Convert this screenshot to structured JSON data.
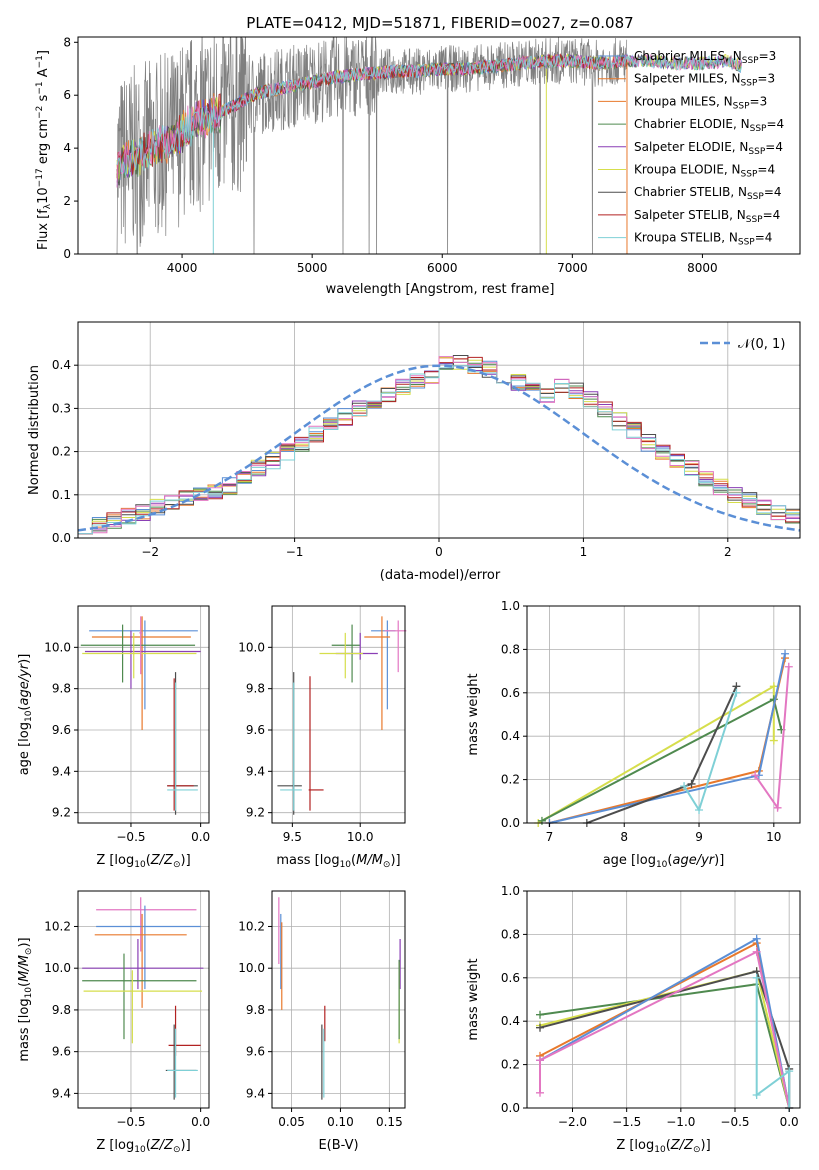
{
  "figure": {
    "title": "PLATE=0412, MJD=51871, FIBERID=0027, z=0.087"
  },
  "colors": {
    "data_gray": "#7f7f7f",
    "blue": "#5b8fd6",
    "orange": "#e8792c",
    "green": "#4f8a4f",
    "purple": "#8a3fb5",
    "yellow": "#d6de4c",
    "dark": "#4d4d4d",
    "red": "#b22222",
    "pink": "#e377c2",
    "cyan": "#7fd0d6"
  },
  "chart_data": [
    {
      "id": "spectrum",
      "type": "line",
      "title": "PLATE=0412, MJD=51871, FIBERID=0027, z=0.087",
      "xlabel": "wavelength [Angstrom, rest frame]",
      "ylabel_main": "Flux [f",
      "ylabel_sub1": "λ",
      "ylabel_mid": "10",
      "ylabel_sup1": "−17",
      "ylabel_mid2": " erg cm",
      "ylabel_sup2": "−2",
      "ylabel_mid3": " s",
      "ylabel_sup3": "−1",
      "ylabel_mid4": " A",
      "ylabel_sup4": "−1",
      "ylabel_end": "]",
      "xlim": [
        3200,
        8750
      ],
      "ylim": [
        0,
        8.2
      ],
      "xticks": [
        "4000",
        "5000",
        "6000",
        "7000",
        "8000"
      ],
      "yticks": [
        "0",
        "2",
        "4",
        "6",
        "8"
      ],
      "grid": false,
      "legend_position": "top-right",
      "legend": [
        {
          "label": "Chabrier MILES, N",
          "sub": "SSP",
          "tail": "=3"
        },
        {
          "label": "Salpeter MILES, N",
          "sub": "SSP",
          "tail": "=3"
        },
        {
          "label": "Kroupa MILES, N",
          "sub": "SSP",
          "tail": "=3"
        },
        {
          "label": "Chabrier ELODIE, N",
          "sub": "SSP",
          "tail": "=4"
        },
        {
          "label": "Salpeter ELODIE, N",
          "sub": "SSP",
          "tail": "=4"
        },
        {
          "label": "Kroupa ELODIE, N",
          "sub": "SSP",
          "tail": "=4"
        },
        {
          "label": "Chabrier STELIB, N",
          "sub": "SSP",
          "tail": "=4"
        },
        {
          "label": "Salpeter STELIB, N",
          "sub": "SSP",
          "tail": "=4"
        },
        {
          "label": "Kroupa STELIB, N",
          "sub": "SSP",
          "tail": "=4"
        }
      ],
      "continuum": {
        "x": [
          3500,
          3600,
          3700,
          3800,
          3900,
          4000,
          4100,
          4200,
          4300,
          4400,
          4500,
          4600,
          4800,
          5000,
          5200,
          5400,
          5600,
          5800,
          6000,
          6200,
          6400,
          6600,
          6800,
          7000,
          7200,
          7400,
          7600,
          7800,
          8000,
          8200,
          8300
        ],
        "y": [
          3.3,
          3.6,
          3.8,
          4.0,
          4.2,
          4.6,
          5.0,
          5.2,
          5.4,
          5.6,
          5.9,
          6.1,
          6.3,
          6.5,
          6.7,
          6.8,
          6.9,
          6.9,
          7.0,
          7.0,
          7.1,
          7.2,
          7.3,
          7.3,
          7.2,
          7.3,
          7.3,
          7.2,
          7.2,
          7.3,
          7.1
        ]
      },
      "models_range": {
        "xmin": 3500,
        "xmax": 8300
      },
      "data_range": {
        "xmin": 3500,
        "xmax": 7420
      },
      "noise_amplitude": 1.0
    },
    {
      "id": "residuals",
      "type": "histogram",
      "xlabel": "(data-model)/error",
      "ylabel": "Normed distribution",
      "xlim": [
        -2.5,
        2.5
      ],
      "ylim": [
        0,
        0.5
      ],
      "xticks": [
        "−2",
        "−1",
        "0",
        "1",
        "2"
      ],
      "yticks": [
        "0.0",
        "0.1",
        "0.2",
        "0.3",
        "0.4"
      ],
      "grid": true,
      "legend_position": "top-right",
      "normal_label": "𝒩(0, 1)",
      "bin_edges_start": -2.5,
      "bin_width": 0.1,
      "base_values": [
        0.03,
        0.03,
        0.04,
        0.05,
        0.06,
        0.07,
        0.08,
        0.09,
        0.1,
        0.11,
        0.12,
        0.14,
        0.16,
        0.18,
        0.2,
        0.22,
        0.24,
        0.26,
        0.28,
        0.3,
        0.31,
        0.33,
        0.35,
        0.36,
        0.37,
        0.4,
        0.41,
        0.4,
        0.39,
        0.37,
        0.36,
        0.34,
        0.33,
        0.35,
        0.34,
        0.32,
        0.3,
        0.27,
        0.25,
        0.22,
        0.2,
        0.18,
        0.16,
        0.14,
        0.12,
        0.1,
        0.09,
        0.07,
        0.06,
        0.05
      ]
    },
    {
      "id": "age_vs_Z",
      "type": "scatter",
      "xlabel": "Z [log",
      "xlabel_tail": "(Z/Z",
      "xlabel_end": ")]",
      "ylabel": "age  [log",
      "ylabel_tail": "(age/yr)]",
      "xlim": [
        -0.88,
        0.06
      ],
      "ylim": [
        9.15,
        10.2
      ],
      "xticks": [
        "−0.5",
        "0.0"
      ],
      "xtick_values": [
        -0.5,
        0.0
      ],
      "yticks": [
        "9.2",
        "9.4",
        "9.6",
        "9.8",
        "10.0"
      ],
      "ytick_values": [
        9.2,
        9.4,
        9.6,
        9.8,
        10.0
      ],
      "points": [
        {
          "color": "blue",
          "x": -0.4,
          "xerr": [
            0.4,
            0.38
          ],
          "y": 10.08,
          "yerr": [
            0.38,
            0.05
          ]
        },
        {
          "color": "orange",
          "x": -0.42,
          "xerr": [
            0.36,
            0.35
          ],
          "y": 10.05,
          "yerr": [
            0.45,
            0.1
          ]
        },
        {
          "color": "green",
          "x": -0.56,
          "xerr": [
            0.3,
            0.52
          ],
          "y": 10.01,
          "yerr": [
            0.18,
            0.1
          ]
        },
        {
          "color": "purple",
          "x": -0.5,
          "xerr": [
            0.33,
            0.5
          ],
          "y": 9.98,
          "yerr": [
            0.18,
            0.1
          ]
        },
        {
          "color": "yellow",
          "x": -0.48,
          "xerr": [
            0.37,
            0.45
          ],
          "y": 9.97,
          "yerr": [
            0.12,
            0.1
          ]
        },
        {
          "color": "dark",
          "x": -0.18,
          "xerr": [
            0.06,
            0.16
          ],
          "y": 9.33,
          "yerr": [
            0.14,
            0.55
          ]
        },
        {
          "color": "red",
          "x": -0.19,
          "xerr": [
            0.05,
            0.14
          ],
          "y": 9.33,
          "yerr": [
            0.12,
            0.52
          ]
        },
        {
          "color": "cyan",
          "x": -0.18,
          "xerr": [
            0.06,
            0.16
          ],
          "y": 9.31,
          "yerr": [
            0.1,
            0.52
          ]
        },
        {
          "color": "pink",
          "x": -0.43,
          "xerr": [
            0.01,
            0.01
          ],
          "y": 10.07,
          "yerr": [
            0.2,
            0.08
          ]
        }
      ]
    },
    {
      "id": "age_vs_mass",
      "type": "scatter",
      "xlabel": "mass [log",
      "xlabel_tail": "(M/M",
      "xlabel_end": ")]",
      "xlim": [
        9.35,
        10.33
      ],
      "ylim": [
        9.15,
        10.2
      ],
      "xticks": [
        "9.5",
        "10.0"
      ],
      "xtick_values": [
        9.5,
        10.0
      ],
      "yticks": [
        "9.2",
        "9.4",
        "9.6",
        "9.8",
        "10.0"
      ],
      "ytick_values": [
        9.2,
        9.4,
        9.6,
        9.8,
        10.0
      ],
      "points": [
        {
          "color": "blue",
          "x": 10.2,
          "xerr": [
            0.12,
            0.06
          ],
          "y": 10.08,
          "yerr": [
            0.38,
            0.05
          ]
        },
        {
          "color": "orange",
          "x": 10.16,
          "xerr": [
            0.13,
            0.06
          ],
          "y": 10.05,
          "yerr": [
            0.45,
            0.1
          ]
        },
        {
          "color": "green",
          "x": 9.94,
          "xerr": [
            0.15,
            0.06
          ],
          "y": 10.01,
          "yerr": [
            0.18,
            0.1
          ]
        },
        {
          "color": "purple",
          "x": 10.0,
          "xerr": [
            0.18,
            0.13
          ],
          "y": 9.97,
          "yerr": [
            0.03,
            0.1
          ]
        },
        {
          "color": "yellow",
          "x": 9.89,
          "xerr": [
            0.19,
            0.13
          ],
          "y": 9.97,
          "yerr": [
            0.12,
            0.1
          ]
        },
        {
          "color": "dark",
          "x": 9.51,
          "xerr": [
            0.12,
            0.06
          ],
          "y": 9.33,
          "yerr": [
            0.14,
            0.55
          ]
        },
        {
          "color": "red",
          "x": 9.63,
          "xerr": [
            0.01,
            0.1
          ],
          "y": 9.31,
          "yerr": [
            0.1,
            0.55
          ]
        },
        {
          "color": "cyan",
          "x": 9.51,
          "xerr": [
            0.1,
            0.06
          ],
          "y": 9.31,
          "yerr": [
            0.1,
            0.52
          ]
        },
        {
          "color": "pink",
          "x": 10.28,
          "xerr": [
            0.1,
            0.06
          ],
          "y": 10.08,
          "yerr": [
            0.2,
            0.05
          ]
        }
      ]
    },
    {
      "id": "weight_vs_age",
      "type": "line",
      "xlabel": "age  [log",
      "xlabel_tail": "(age/yr)]",
      "ylabel": "mass weight",
      "xlim": [
        6.7,
        10.35
      ],
      "ylim": [
        0,
        1.0
      ],
      "xticks": [
        "7",
        "8",
        "9",
        "10"
      ],
      "xtick_values": [
        7,
        8,
        9,
        10
      ],
      "yticks": [
        "0.0",
        "0.2",
        "0.4",
        "0.6",
        "0.8",
        "1.0"
      ],
      "ytick_values": [
        0.0,
        0.2,
        0.4,
        0.6,
        0.8,
        1.0
      ],
      "grid": true,
      "series": [
        {
          "color": "yellow",
          "x": [
            6.85,
            10.0,
            10.0
          ],
          "y": [
            0.0,
            0.63,
            0.38
          ]
        },
        {
          "color": "green",
          "x": [
            6.9,
            10.0,
            10.1
          ],
          "y": [
            0.01,
            0.57,
            0.43
          ]
        },
        {
          "color": "orange",
          "x": [
            7.0,
            9.8,
            10.15
          ],
          "y": [
            0.0,
            0.24,
            0.76
          ]
        },
        {
          "color": "blue",
          "x": [
            7.0,
            9.8,
            10.15
          ],
          "y": [
            0.0,
            0.22,
            0.78
          ]
        },
        {
          "color": "dark",
          "x": [
            7.5,
            8.9,
            9.5
          ],
          "y": [
            0.0,
            0.18,
            0.63
          ]
        },
        {
          "color": "cyan",
          "x": [
            8.8,
            9.0,
            9.5
          ],
          "y": [
            0.17,
            0.06,
            0.6
          ]
        },
        {
          "color": "pink",
          "x": [
            9.75,
            10.05,
            10.2
          ],
          "y": [
            0.22,
            0.07,
            0.72
          ]
        }
      ]
    },
    {
      "id": "mass_vs_Z",
      "type": "scatter",
      "xlabel": "Z [log",
      "xlabel_tail": "(Z/Z",
      "xlabel_end": ")]",
      "ylabel": "mass [log",
      "ylabel_tail": "(M/M",
      "ylabel_end": ")]",
      "xlim": [
        -0.88,
        0.06
      ],
      "ylim": [
        9.33,
        10.37
      ],
      "xticks": [
        "−0.5",
        "0.0"
      ],
      "xtick_values": [
        -0.5,
        0.0
      ],
      "yticks": [
        "9.4",
        "9.6",
        "9.8",
        "10.0",
        "10.2"
      ],
      "ytick_values": [
        9.4,
        9.6,
        9.8,
        10.0,
        10.2
      ],
      "points": [
        {
          "color": "pink",
          "x": -0.43,
          "xerr": [
            0.32,
            0.4
          ],
          "y": 10.28,
          "yerr": [
            0.2,
            0.06
          ]
        },
        {
          "color": "blue",
          "x": -0.4,
          "xerr": [
            0.35,
            0.4
          ],
          "y": 10.2,
          "yerr": [
            0.3,
            0.1
          ]
        },
        {
          "color": "orange",
          "x": -0.42,
          "xerr": [
            0.34,
            0.32
          ],
          "y": 10.16,
          "yerr": [
            0.35,
            0.1
          ]
        },
        {
          "color": "purple",
          "x": -0.45,
          "xerr": [
            0.4,
            0.47
          ],
          "y": 10.0,
          "yerr": [
            0.1,
            0.14
          ]
        },
        {
          "color": "green",
          "x": -0.55,
          "xerr": [
            0.3,
            0.52
          ],
          "y": 9.94,
          "yerr": [
            0.28,
            0.13
          ]
        },
        {
          "color": "yellow",
          "x": -0.49,
          "xerr": [
            0.35,
            0.5
          ],
          "y": 9.89,
          "yerr": [
            0.25,
            0.1
          ]
        },
        {
          "color": "red",
          "x": -0.18,
          "xerr": [
            0.05,
            0.18
          ],
          "y": 9.63,
          "yerr": [
            0.05,
            0.19
          ]
        },
        {
          "color": "dark",
          "x": -0.19,
          "xerr": [
            0.06,
            0.16
          ],
          "y": 9.51,
          "yerr": [
            0.14,
            0.22
          ]
        },
        {
          "color": "cyan",
          "x": -0.18,
          "xerr": [
            0.06,
            0.16
          ],
          "y": 9.51,
          "yerr": [
            0.13,
            0.2
          ]
        }
      ]
    },
    {
      "id": "mass_vs_ebv",
      "type": "scatter",
      "xlabel": "E(B-V)",
      "xlim": [
        0.03,
        0.166
      ],
      "ylim": [
        9.33,
        10.37
      ],
      "xticks": [
        "0.05",
        "0.10",
        "0.15"
      ],
      "xtick_values": [
        0.05,
        0.1,
        0.15
      ],
      "yticks": [
        "9.4",
        "9.6",
        "9.8",
        "10.0",
        "10.2"
      ],
      "ytick_values": [
        9.4,
        9.6,
        9.8,
        10.0,
        10.2
      ],
      "points": [
        {
          "color": "pink",
          "x": 0.037,
          "y": 10.28,
          "yerr": [
            0.26,
            0.06
          ]
        },
        {
          "color": "blue",
          "x": 0.039,
          "y": 10.2,
          "yerr": [
            0.3,
            0.06
          ]
        },
        {
          "color": "orange",
          "x": 0.04,
          "y": 10.16,
          "yerr": [
            0.36,
            0.06
          ]
        },
        {
          "color": "purple",
          "x": 0.161,
          "y": 10.0,
          "yerr": [
            0.1,
            0.14
          ]
        },
        {
          "color": "yellow",
          "x": 0.16,
          "y": 9.89,
          "yerr": [
            0.25,
            0.14
          ]
        },
        {
          "color": "green",
          "x": 0.16,
          "y": 9.94,
          "yerr": [
            0.28,
            0.1
          ]
        },
        {
          "color": "red",
          "x": 0.084,
          "y": 9.7,
          "yerr": [
            0.05,
            0.12
          ]
        },
        {
          "color": "dark",
          "x": 0.081,
          "y": 9.51,
          "yerr": [
            0.14,
            0.22
          ]
        },
        {
          "color": "cyan",
          "x": 0.083,
          "y": 9.51,
          "yerr": [
            0.13,
            0.2
          ]
        }
      ]
    },
    {
      "id": "weight_vs_Z",
      "type": "line",
      "xlabel": "Z [log",
      "xlabel_tail": "(Z/Z",
      "xlabel_end": ")]",
      "ylabel": "mass weight",
      "xlim": [
        -2.42,
        0.1
      ],
      "ylim": [
        0,
        1.0
      ],
      "xticks": [
        "−2.0",
        "−1.5",
        "−1.0",
        "−0.5",
        "0.0"
      ],
      "xtick_values": [
        -2.0,
        -1.5,
        -1.0,
        -0.5,
        0.0
      ],
      "yticks": [
        "0.0",
        "0.2",
        "0.4",
        "0.6",
        "0.8",
        "1.0"
      ],
      "ytick_values": [
        0.0,
        0.2,
        0.4,
        0.6,
        0.8,
        1.0
      ],
      "grid": true,
      "series": [
        {
          "color": "green",
          "x": [
            -2.3,
            -0.3,
            0.0
          ],
          "y": [
            0.43,
            0.57,
            0.0
          ]
        },
        {
          "color": "yellow",
          "x": [
            -2.3,
            -0.3,
            0.0
          ],
          "y": [
            0.38,
            0.63,
            0.0
          ]
        },
        {
          "color": "dark",
          "x": [
            -2.3,
            -0.3,
            0.0,
            0.0
          ],
          "y": [
            0.37,
            0.63,
            0.18,
            0.0
          ]
        },
        {
          "color": "orange",
          "x": [
            -2.3,
            -0.3,
            0.0
          ],
          "y": [
            0.24,
            0.76,
            0.0
          ]
        },
        {
          "color": "blue",
          "x": [
            -2.3,
            -0.3,
            0.0
          ],
          "y": [
            0.22,
            0.78,
            0.0
          ]
        },
        {
          "color": "pink",
          "x": [
            -2.3,
            -2.3,
            -0.3,
            0.0
          ],
          "y": [
            0.07,
            0.22,
            0.72,
            0.0
          ]
        },
        {
          "color": "cyan",
          "x": [
            -0.3,
            -0.3,
            0.0,
            0.0
          ],
          "y": [
            0.6,
            0.06,
            0.17,
            0.0
          ]
        }
      ]
    }
  ]
}
